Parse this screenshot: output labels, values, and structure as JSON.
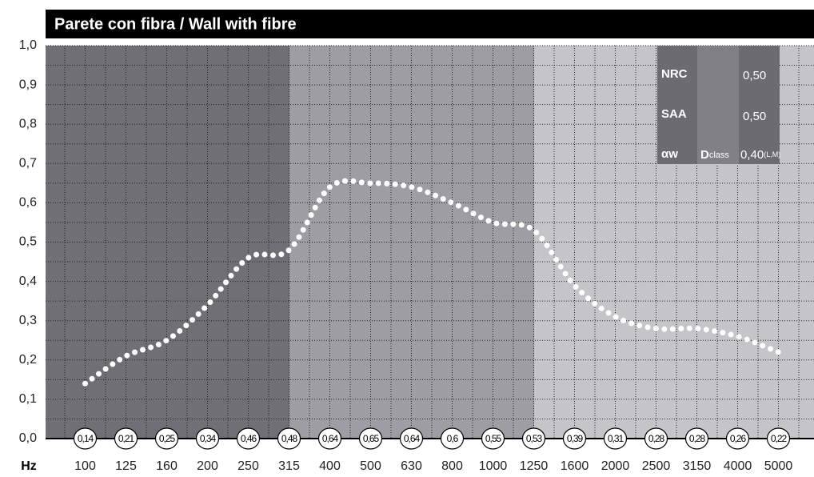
{
  "chart_data": {
    "type": "line",
    "title": "Parete con fibra / Wall with fibre",
    "x_label": "Hz",
    "categories": [
      "100",
      "125",
      "160",
      "200",
      "250",
      "315",
      "400",
      "500",
      "630",
      "800",
      "1000",
      "1250",
      "1600",
      "2000",
      "2500",
      "3150",
      "4000",
      "5000"
    ],
    "series": [
      {
        "name": "Parete con fibra / Wall with fibre",
        "color": "#ffffff",
        "values": [
          0.14,
          0.21,
          0.25,
          0.34,
          0.46,
          0.48,
          0.64,
          0.65,
          0.64,
          0.6,
          0.55,
          0.53,
          0.39,
          0.31,
          0.28,
          0.28,
          0.26,
          0.22
        ],
        "value_labels": [
          "0,14",
          "0,21",
          "0,25",
          "0,34",
          "0,46",
          "0,48",
          "0,64",
          "0,65",
          "0,64",
          "0,6",
          "0,55",
          "0,53",
          "0,39",
          "0,31",
          "0,28",
          "0,28",
          "0,26",
          "0,22"
        ]
      }
    ],
    "ylim": [
      0,
      1
    ],
    "yticks": [
      {
        "value": 0,
        "label": "0,0"
      },
      {
        "value": 0.1,
        "label": "0,1"
      },
      {
        "value": 0.2,
        "label": "0,2"
      },
      {
        "value": 0.3,
        "label": "0,3"
      },
      {
        "value": 0.4,
        "label": "0,4"
      },
      {
        "value": 0.5,
        "label": "0,5"
      },
      {
        "value": 0.6,
        "label": "0,6"
      },
      {
        "value": 0.7,
        "label": "0,7"
      },
      {
        "value": 0.8,
        "label": "0,8"
      },
      {
        "value": 0.9,
        "label": "0,9"
      },
      {
        "value": 1,
        "label": "1,0"
      }
    ],
    "grid": true,
    "info": {
      "nrc_label": "NRC",
      "nrc_value": "0,50",
      "saa_label": "SAA",
      "saa_value": "0,50",
      "aw_label": "αw",
      "class_main": "D",
      "class_sub": "class",
      "class_value": "0,40",
      "class_value_sub": "(L,M)"
    }
  }
}
